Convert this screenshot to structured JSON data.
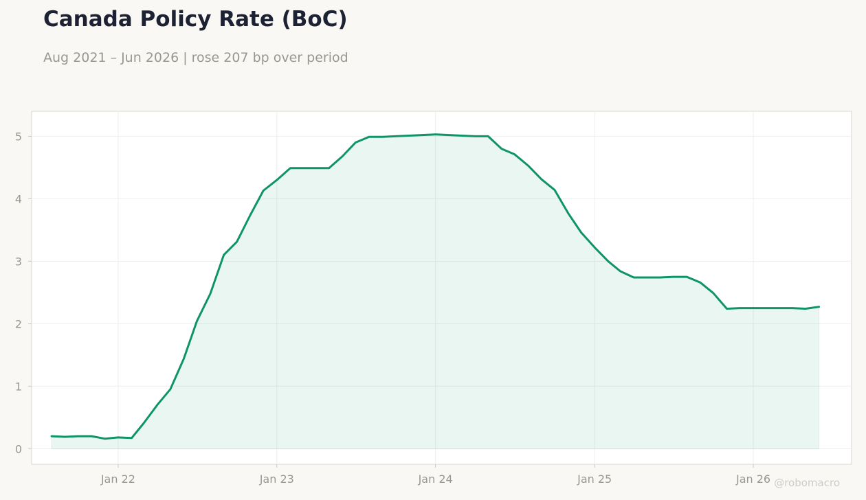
{
  "header": {
    "title": "Canada Policy Rate (BoC)",
    "subtitle": "Aug 2021 – Jun 2026 | rose 207 bp over period"
  },
  "watermark": "@robomacro",
  "colors": {
    "line": "#0e9467",
    "fill": "#0e9467",
    "background": "#f9f8f4",
    "plot_background": "#ffffff",
    "grid": "#eeeeec",
    "text_muted": "#9a9791"
  },
  "chart_data": {
    "type": "area",
    "title": "Canada Policy Rate (BoC)",
    "subtitle": "Aug 2021 – Jun 2026 | rose 207 bp over period",
    "xlabel": "",
    "ylabel": "",
    "xlim": [
      "2021-06-16",
      "2026-08-15"
    ],
    "ylim": [
      -0.25,
      5.4
    ],
    "grid": true,
    "legend": "none",
    "x_ticks": [
      {
        "date": "2022-01-01",
        "label": "Jan 22"
      },
      {
        "date": "2023-01-01",
        "label": "Jan 23"
      },
      {
        "date": "2024-01-01",
        "label": "Jan 24"
      },
      {
        "date": "2025-01-01",
        "label": "Jan 25"
      },
      {
        "date": "2026-01-01",
        "label": "Jan 26"
      }
    ],
    "y_ticks": [
      0,
      1,
      2,
      3,
      4,
      5
    ],
    "series": [
      {
        "x": [
          "2021-08-01",
          "2021-09-01",
          "2021-10-01",
          "2021-11-01",
          "2021-12-01",
          "2022-01-01",
          "2022-02-01",
          "2022-03-01",
          "2022-04-01",
          "2022-05-01",
          "2022-06-01",
          "2022-07-01",
          "2022-08-01",
          "2022-09-01",
          "2022-10-01",
          "2022-11-01",
          "2022-12-01",
          "2023-01-01",
          "2023-02-01",
          "2023-03-01",
          "2023-04-01",
          "2023-05-01",
          "2023-06-01",
          "2023-07-01",
          "2023-08-01",
          "2023-09-01",
          "2023-10-01",
          "2023-11-01",
          "2023-12-01",
          "2024-01-01",
          "2024-02-01",
          "2024-03-01",
          "2024-04-01",
          "2024-05-01",
          "2024-06-01",
          "2024-07-01",
          "2024-08-01",
          "2024-09-01",
          "2024-10-01",
          "2024-11-01",
          "2024-12-01",
          "2025-01-01",
          "2025-02-01",
          "2025-03-01",
          "2025-04-01",
          "2025-05-01",
          "2025-06-01",
          "2025-07-01",
          "2025-08-01",
          "2025-09-01",
          "2025-10-01",
          "2025-11-01",
          "2025-12-01",
          "2026-01-01",
          "2026-02-01",
          "2026-03-01",
          "2026-04-01",
          "2026-05-01",
          "2026-06-01"
        ],
        "values": [
          0.2,
          0.19,
          0.2,
          0.2,
          0.16,
          0.18,
          0.17,
          0.41,
          0.7,
          0.95,
          1.44,
          2.04,
          2.48,
          3.1,
          3.31,
          3.74,
          4.13,
          4.3,
          4.49,
          4.49,
          4.49,
          4.49,
          4.68,
          4.9,
          4.99,
          4.99,
          5.0,
          5.01,
          5.02,
          5.03,
          5.02,
          5.01,
          5.0,
          5.0,
          4.8,
          4.71,
          4.53,
          4.31,
          4.14,
          3.77,
          3.46,
          3.22,
          3.0,
          2.84,
          2.74,
          2.74,
          2.74,
          2.75,
          2.75,
          2.66,
          2.49,
          2.24,
          2.25,
          2.25,
          2.25,
          2.25,
          2.25,
          2.24,
          2.27
        ]
      }
    ]
  }
}
